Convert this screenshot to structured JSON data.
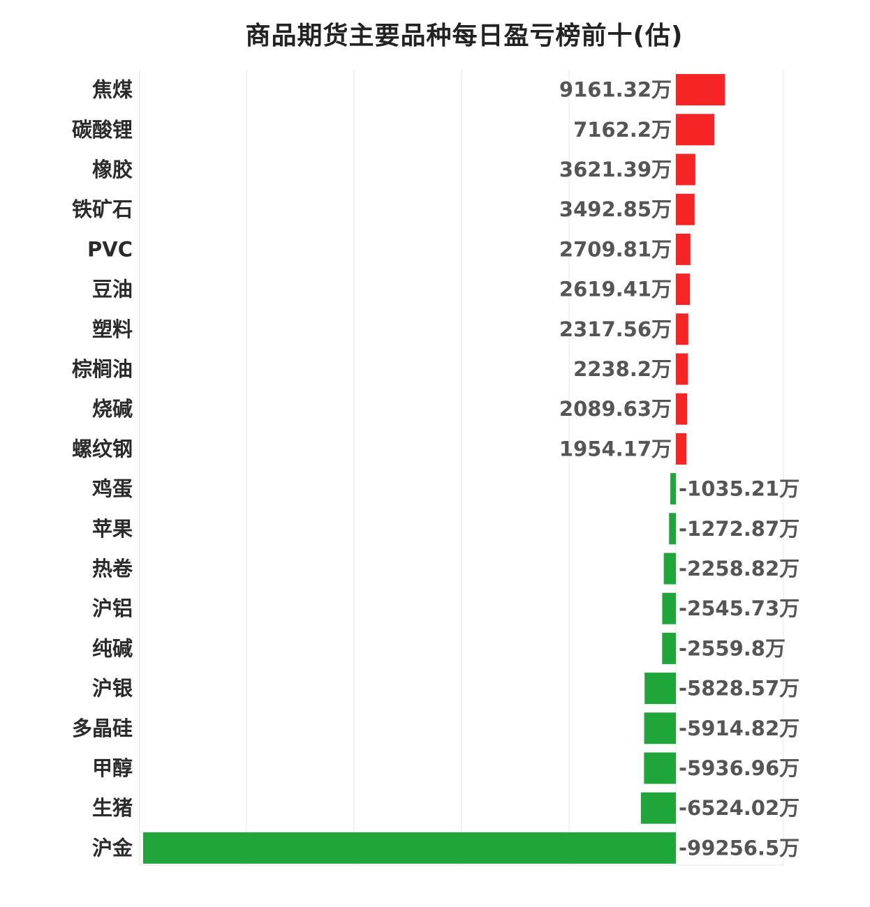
{
  "chart_data": {
    "type": "bar",
    "orientation": "horizontal",
    "title": "商品期货主要品种每日盈亏榜前十(估)",
    "unit": "万",
    "grid": true,
    "legend": "none",
    "xlim": [
      -100000,
      10000
    ],
    "categories": [
      "焦煤",
      "碳酸锂",
      "橡胶",
      "铁矿石",
      "PVC",
      "豆油",
      "塑料",
      "棕榈油",
      "烧碱",
      "螺纹钢",
      "鸡蛋",
      "苹果",
      "热卷",
      "沪铝",
      "纯碱",
      "沪银",
      "多晶硅",
      "甲醇",
      "生猪",
      "沪金"
    ],
    "values": [
      9161.32,
      7162.2,
      3621.39,
      3492.85,
      2709.81,
      2619.41,
      2317.56,
      2238.2,
      2089.63,
      1954.17,
      -1035.21,
      -1272.87,
      -2258.82,
      -2545.73,
      -2559.8,
      -5828.57,
      -5914.82,
      -5936.96,
      -6524.02,
      -99256.5
    ],
    "value_labels": [
      "9161.32万",
      "7162.2万",
      "3621.39万",
      "3492.85万",
      "2709.81万",
      "2619.41万",
      "2317.56万",
      "2238.2万",
      "2089.63万",
      "1954.17万",
      "-1035.21万",
      "-1272.87万",
      "-2258.82万",
      "-2545.73万",
      "-2559.8万",
      "-5828.57万",
      "-5914.82万",
      "-5936.96万",
      "-6524.02万",
      "-99256.5万"
    ],
    "colors": {
      "positive": "#f52525",
      "negative": "#1fa53a",
      "grid": "#e6e6e6"
    }
  }
}
